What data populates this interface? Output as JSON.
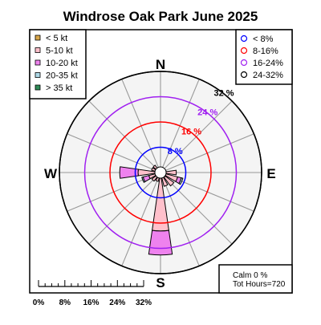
{
  "title": "Windrose  Oak Park June 2025",
  "compass": {
    "n": "N",
    "e": "E",
    "s": "S",
    "w": "W"
  },
  "speed_legend": [
    {
      "label": "< 5  kt",
      "color": "#d9a74a"
    },
    {
      "label": "5-10 kt",
      "color": "#ffc0cb"
    },
    {
      "label": "10-20 kt",
      "color": "#ee82ee"
    },
    {
      "label": "20-35 kt",
      "color": "#add8e6"
    },
    {
      "label": "> 35 kt",
      "color": "#2e8b57"
    }
  ],
  "ring_legend": [
    {
      "label": "< 8%",
      "color": "#0000ff"
    },
    {
      "label": "8-16%",
      "color": "#ff0000"
    },
    {
      "label": "16-24%",
      "color": "#a020f0"
    },
    {
      "label": "24-32%",
      "color": "#000000"
    }
  ],
  "calm_text": "Calm 0 %",
  "hours_text": "Tot Hours=720",
  "scale_labels": [
    "0%",
    "8%",
    "16%",
    "24%",
    "32%"
  ],
  "chart_data": {
    "type": "windrose",
    "title": "Windrose  Oak Park June 2025",
    "directions": [
      "N",
      "NNE",
      "NE",
      "ENE",
      "E",
      "ESE",
      "SE",
      "SSE",
      "S",
      "SSW",
      "SW",
      "WSW",
      "W",
      "WNW",
      "NW",
      "NNW"
    ],
    "rings": [
      {
        "value": 8,
        "label": "8 %",
        "color": "#0000ff"
      },
      {
        "value": 16,
        "label": "16 %",
        "color": "#ff0000"
      },
      {
        "value": 24,
        "label": "24 %",
        "color": "#a020f0"
      },
      {
        "value": 32,
        "label": "32 %",
        "color": "#000000"
      }
    ],
    "rmax": 32,
    "speed_bins": [
      "< 5  kt",
      "5-10 kt",
      "10-20 kt",
      "20-35 kt",
      "> 35 kt"
    ],
    "series": [
      {
        "name": "< 5  kt",
        "values": [
          0.3,
          0.4,
          0.6,
          1.6,
          1.5,
          1.7,
          1.9,
          1.6,
          1.2,
          1.3,
          0.8,
          1.0,
          1.3,
          0.8,
          0.5,
          0.3
        ]
      },
      {
        "name": "5-10 kt",
        "values": [
          0.0,
          0.0,
          0.4,
          0.2,
          3.5,
          3.9,
          3.4,
          2.9,
          17.3,
          1.6,
          2.6,
          2.8,
          5.8,
          2.1,
          2.4,
          0.0
        ]
      },
      {
        "name": "10-20 kt",
        "values": [
          0.0,
          0.0,
          0.0,
          0.0,
          0.0,
          1.2,
          0.0,
          0.0,
          7.6,
          0.0,
          0.0,
          1.9,
          5.8,
          0.0,
          0.0,
          0.0
        ]
      },
      {
        "name": "20-35 kt",
        "values": [
          0.0,
          0.0,
          0.0,
          0.0,
          0.0,
          0.5,
          0.0,
          0.0,
          0.0,
          0.0,
          0.0,
          0.4,
          0.0,
          0.0,
          0.0,
          0.0
        ]
      },
      {
        "name": "> 35 kt",
        "values": [
          0,
          0,
          0,
          0,
          0,
          0,
          0,
          0,
          0,
          0,
          0,
          0,
          0,
          0,
          0,
          0
        ]
      }
    ],
    "calm_percent": 0,
    "total_hours": 720
  }
}
